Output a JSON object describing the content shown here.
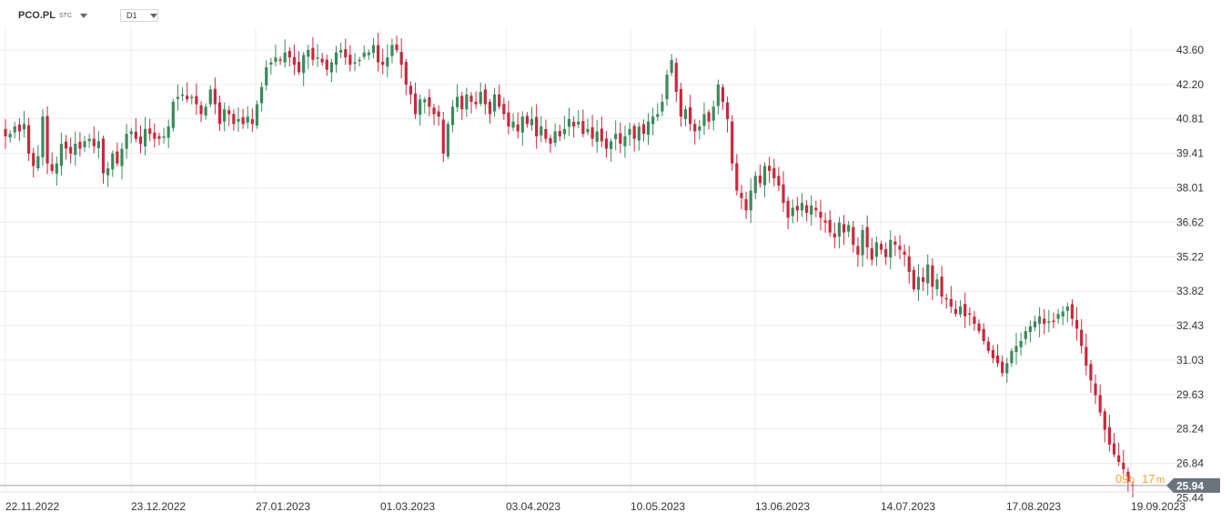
{
  "toolbar": {
    "symbol": "PCO.PL",
    "symbol_suffix": "STC",
    "timeframe": "D1"
  },
  "countdown": {
    "h": "09",
    "h_unit": "h",
    "m": "17",
    "m_unit": "m"
  },
  "colors": {
    "up": "#3a8a5c",
    "down": "#c9283c",
    "grid": "#ececec",
    "price_tag": "#6b737d",
    "countdown": "#f0a030"
  },
  "chart_data": {
    "type": "candlestick",
    "title": "",
    "xlabel": "",
    "ylabel": "",
    "ylim": [
      25.44,
      44.5
    ],
    "y_ticks": [
      "43.60",
      "42.20",
      "40.81",
      "39.41",
      "38.01",
      "36.62",
      "35.22",
      "33.82",
      "32.43",
      "31.03",
      "29.63",
      "28.24",
      "26.84"
    ],
    "x_ticks": [
      "22.11.2022",
      "23.12.2022",
      "27.01.2023",
      "01.03.2023",
      "03.04.2023",
      "10.05.2023",
      "13.06.2023",
      "14.07.2023",
      "17.08.2023",
      "19.09.2023"
    ],
    "last_price": "25.94",
    "partial_label": "25.44",
    "grid": true,
    "close": [
      40.1,
      40.2,
      40.5,
      40.3,
      40.6,
      39.4,
      38.9,
      39.3,
      40.9,
      39.0,
      38.7,
      39.0,
      39.8,
      39.6,
      39.4,
      39.8,
      39.6,
      39.9,
      40.0,
      39.7,
      39.9,
      38.6,
      38.8,
      39.4,
      39.0,
      39.6,
      40.2,
      40.3,
      40.0,
      39.8,
      40.4,
      40.2,
      40.0,
      40.0,
      40.1,
      40.5,
      41.5,
      41.7,
      41.8,
      41.6,
      41.7,
      41.4,
      41.0,
      41.3,
      42.0,
      41.4,
      40.6,
      41.2,
      41.0,
      40.6,
      40.8,
      40.6,
      40.9,
      40.6,
      41.4,
      42.1,
      42.9,
      43.1,
      43.3,
      43.2,
      43.5,
      43.3,
      43.0,
      42.7,
      43.4,
      43.6,
      43.2,
      43.3,
      43.1,
      42.8,
      43.1,
      43.5,
      43.6,
      43.3,
      43.0,
      43.1,
      43.2,
      43.5,
      43.5,
      43.8,
      43.1,
      43.0,
      43.3,
      43.8,
      43.6,
      43.0,
      42.2,
      41.8,
      41.0,
      41.6,
      41.6,
      41.3,
      41.0,
      40.9,
      39.4,
      40.6,
      41.3,
      41.7,
      41.2,
      41.8,
      41.5,
      41.4,
      41.9,
      41.4,
      41.0,
      41.8,
      41.3,
      41.0,
      40.5,
      40.7,
      40.3,
      40.9,
      40.6,
      40.8,
      40.1,
      40.5,
      40.0,
      39.8,
      40.3,
      40.1,
      40.4,
      40.8,
      40.5,
      40.7,
      40.2,
      40.4,
      40.0,
      40.3,
      39.9,
      39.6,
      39.9,
      40.2,
      39.8,
      40.1,
      40.4,
      40.0,
      40.5,
      40.2,
      40.7,
      40.9,
      41.0,
      41.5,
      42.6,
      43.2,
      41.9,
      40.9,
      41.2,
      40.6,
      40.3,
      40.5,
      41.0,
      40.7,
      41.3,
      42.2,
      41.5,
      40.8,
      39.0,
      37.9,
      37.6,
      37.1,
      37.9,
      38.5,
      38.2,
      38.9,
      38.7,
      38.4,
      38.1,
      37.4,
      36.8,
      37.2,
      37.1,
      37.4,
      37.0,
      37.3,
      37.1,
      36.8,
      36.6,
      36.2,
      36.0,
      36.6,
      36.2,
      36.5,
      35.7,
      35.3,
      36.3,
      35.6,
      35.1,
      35.8,
      35.5,
      35.2,
      35.9,
      35.7,
      35.5,
      35.3,
      34.6,
      33.9,
      34.4,
      34.2,
      34.9,
      34.0,
      34.3,
      33.6,
      33.5,
      33.2,
      32.9,
      33.2,
      32.8,
      32.9,
      32.5,
      32.2,
      31.8,
      31.4,
      31.1,
      30.9,
      30.5,
      30.9,
      31.4,
      31.6,
      31.8,
      32.2,
      32.4,
      32.6,
      32.8,
      32.5,
      32.6,
      32.6,
      32.9,
      33.0,
      33.2,
      32.7,
      32.3,
      31.6,
      30.8,
      30.2,
      29.6,
      28.9,
      28.2,
      27.6,
      27.2,
      26.9,
      26.6,
      26.1,
      25.94
    ]
  }
}
